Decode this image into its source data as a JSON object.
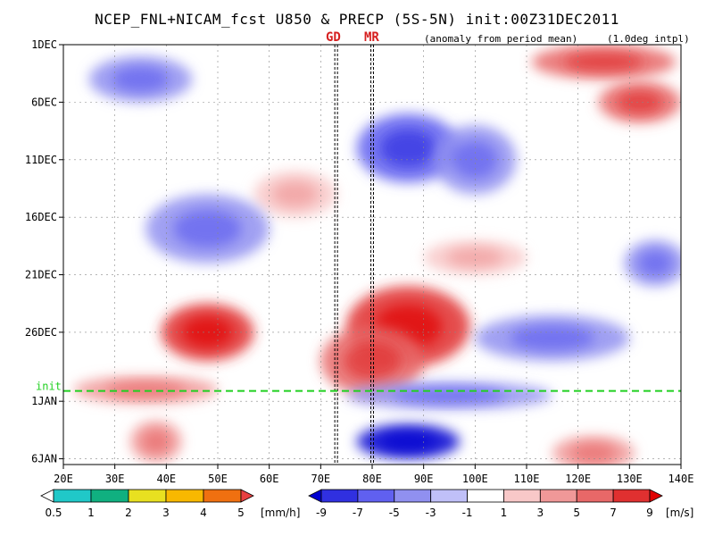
{
  "chart_data": {
    "type": "heatmap",
    "title": "NCEP_FNL+NICAM_fcst U850 & PRECP (5S-5N) init:00Z31DEC2011",
    "subtitle_left": "(anomaly from period mean)",
    "subtitle_right": "(1.0deg intpl)",
    "x_ticks": [
      "20E",
      "30E",
      "40E",
      "50E",
      "60E",
      "70E",
      "80E",
      "90E",
      "100E",
      "110E",
      "120E",
      "130E",
      "140E"
    ],
    "xlim": [
      20,
      140
    ],
    "y_ticks": [
      {
        "label": "1DEC",
        "day": 0
      },
      {
        "label": "6DEC",
        "day": 5
      },
      {
        "label": "11DEC",
        "day": 10
      },
      {
        "label": "16DEC",
        "day": 15
      },
      {
        "label": "21DEC",
        "day": 20
      },
      {
        "label": "26DEC",
        "day": 25
      },
      {
        "label": "1JAN",
        "day": 31
      },
      {
        "label": "6JAN",
        "day": 36
      }
    ],
    "ylim_days": [
      0,
      36.5
    ],
    "init_line": {
      "label": "init",
      "day": 30.1
    },
    "markers": [
      {
        "label": "GD",
        "lon": 73
      },
      {
        "label": "MR",
        "lon": 80
      }
    ],
    "u850_anomalies": [
      {
        "lon": 48,
        "day": 25.0,
        "value": 8,
        "rx": 9,
        "ry": 2.5
      },
      {
        "lon": 87,
        "day": 24.5,
        "value": 9,
        "rx": 12,
        "ry": 3.5
      },
      {
        "lon": 80,
        "day": 27.5,
        "value": 6,
        "rx": 10,
        "ry": 3
      },
      {
        "lon": 125,
        "day": 1.5,
        "value": 6,
        "rx": 14,
        "ry": 1.5
      },
      {
        "lon": 132,
        "day": 5.0,
        "value": 6,
        "rx": 8,
        "ry": 1.8
      },
      {
        "lon": 123,
        "day": 35.5,
        "value": 5,
        "rx": 8,
        "ry": 1.5
      },
      {
        "lon": 38,
        "day": 34.5,
        "value": 5,
        "rx": 5,
        "ry": 1.8
      },
      {
        "lon": 36,
        "day": 30.0,
        "value": 4,
        "rx": 14,
        "ry": 1.2
      },
      {
        "lon": 65,
        "day": 13.0,
        "value": 3,
        "rx": 8,
        "ry": 2
      },
      {
        "lon": 100,
        "day": 18.5,
        "value": 3,
        "rx": 10,
        "ry": 1.5
      },
      {
        "lon": 87,
        "day": 34.5,
        "value": -9,
        "rx": 10,
        "ry": 1.5
      },
      {
        "lon": 87,
        "day": 9.0,
        "value": -5,
        "rx": 10,
        "ry": 3
      },
      {
        "lon": 48,
        "day": 16.0,
        "value": -4,
        "rx": 12,
        "ry": 3
      },
      {
        "lon": 35,
        "day": 3.0,
        "value": -4,
        "rx": 10,
        "ry": 2
      },
      {
        "lon": 115,
        "day": 25.5,
        "value": -4,
        "rx": 15,
        "ry": 2
      },
      {
        "lon": 135,
        "day": 19.0,
        "value": -3,
        "rx": 6,
        "ry": 2
      },
      {
        "lon": 100,
        "day": 10.0,
        "value": -4,
        "rx": 8,
        "ry": 3
      },
      {
        "lon": 95,
        "day": 30.5,
        "value": -3,
        "rx": 20,
        "ry": 1.2
      }
    ],
    "precp_colorbar": {
      "ticks": [
        "0.5",
        "1",
        "2",
        "3",
        "4",
        "5"
      ],
      "unit": "[mm/h]",
      "colors": [
        "#ffffff",
        "#20c8c8",
        "#10b080",
        "#e8e020",
        "#f8b800",
        "#f07010",
        "#e84040"
      ]
    },
    "u850_colorbar": {
      "ticks": [
        "-9",
        "-7",
        "-5",
        "-3",
        "-1",
        "1",
        "3",
        "5",
        "7",
        "9"
      ],
      "unit": "[m/s]",
      "colors": [
        "#0000d0",
        "#3030e0",
        "#6060f0",
        "#9090f0",
        "#c0c0f8",
        "#ffffff",
        "#f8c8c8",
        "#f09898",
        "#e86868",
        "#e03030",
        "#e00000"
      ]
    }
  }
}
